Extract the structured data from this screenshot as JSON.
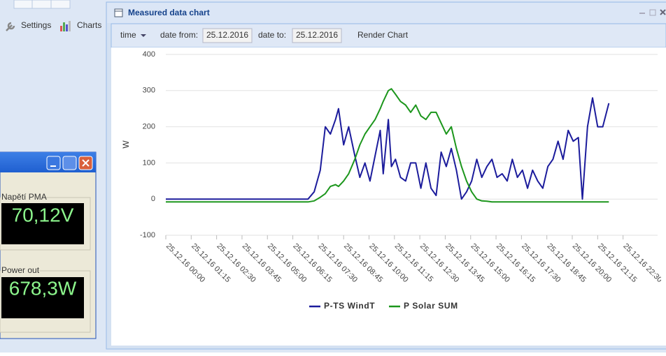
{
  "app": {
    "settings": "Settings",
    "charts": "Charts"
  },
  "side_panel": {
    "voltage_label": "Napětí PMA",
    "voltage_value": "70,12V",
    "power_label": "Power out",
    "power_value": "678,3W"
  },
  "window": {
    "title": "Measured data chart"
  },
  "toolbar": {
    "mode": "time",
    "date_from_label": "date from:",
    "date_from": "25.12.2016",
    "date_to_label": "date to:",
    "date_to": "25.12.2016",
    "render": "Render Chart"
  },
  "chart_data": {
    "type": "line",
    "y_label": "W",
    "ylim": [
      -100,
      400
    ],
    "yticks": [
      -100,
      0,
      100,
      200,
      300,
      400
    ],
    "xlim": [
      0,
      24.2
    ],
    "xticks": [
      {
        "value": 0,
        "label": "25.12.16 00:00"
      },
      {
        "value": 1.25,
        "label": "25.12.16 01:15"
      },
      {
        "value": 2.5,
        "label": "25.12.16 02:30"
      },
      {
        "value": 3.75,
        "label": "25.12.16 03:45"
      },
      {
        "value": 5,
        "label": "25.12.16 05:00"
      },
      {
        "value": 6.25,
        "label": "25.12.16 06:15"
      },
      {
        "value": 7.5,
        "label": "25.12.16 07:30"
      },
      {
        "value": 8.75,
        "label": "25.12.16 08:45"
      },
      {
        "value": 10,
        "label": "25.12.16 10:00"
      },
      {
        "value": 11.25,
        "label": "25.12.16 11:15"
      },
      {
        "value": 12.5,
        "label": "25.12.16 12:30"
      },
      {
        "value": 13.75,
        "label": "25.12.16 13:45"
      },
      {
        "value": 15,
        "label": "25.12.16 15:00"
      },
      {
        "value": 16.25,
        "label": "25.12.16 16:15"
      },
      {
        "value": 17.5,
        "label": "25.12.16 17:30"
      },
      {
        "value": 18.75,
        "label": "25.12.16 18:45"
      },
      {
        "value": 20,
        "label": "25.12.16 20:00"
      },
      {
        "value": 21.25,
        "label": "25.12.16 21:15"
      },
      {
        "value": 22.5,
        "label": "25.12.16 22:30"
      }
    ],
    "grid": true,
    "x": [
      0,
      7.0,
      7.3,
      7.6,
      7.85,
      8.1,
      8.35,
      8.5,
      8.75,
      9.0,
      9.3,
      9.55,
      9.8,
      10.05,
      10.3,
      10.55,
      10.7,
      10.95,
      11.1,
      11.3,
      11.55,
      11.8,
      12.05,
      12.3,
      12.55,
      12.8,
      13.05,
      13.3,
      13.55,
      13.8,
      14.05,
      14.3,
      14.55,
      14.8,
      15.05,
      15.3,
      15.55,
      15.8,
      16.05,
      16.3,
      16.55,
      16.8,
      17.05,
      17.3,
      17.55,
      17.8,
      18.05,
      18.3,
      18.55,
      18.8,
      19.05,
      19.3,
      19.55,
      19.8,
      20.05,
      20.3,
      20.5,
      20.75,
      21.0,
      21.25,
      21.5,
      21.8
    ],
    "series": [
      {
        "name": "P-TS WindT",
        "color": "#1c1c9c",
        "values": [
          0,
          0,
          20,
          80,
          200,
          180,
          220,
          250,
          150,
          200,
          120,
          60,
          100,
          50,
          120,
          190,
          70,
          220,
          90,
          110,
          60,
          50,
          100,
          100,
          30,
          100,
          30,
          10,
          130,
          90,
          140,
          80,
          0,
          20,
          50,
          110,
          60,
          90,
          110,
          60,
          70,
          50,
          110,
          60,
          80,
          30,
          80,
          50,
          30,
          90,
          110,
          160,
          110,
          190,
          160,
          170,
          0,
          200,
          280,
          200,
          200,
          265
        ]
      },
      {
        "name": "P Solar SUM",
        "color": "#1c961c",
        "values": [
          -8,
          -8,
          -5,
          5,
          15,
          35,
          40,
          35,
          50,
          70,
          110,
          150,
          180,
          200,
          220,
          250,
          270,
          300,
          305,
          290,
          270,
          260,
          240,
          260,
          230,
          220,
          240,
          240,
          210,
          180,
          200,
          140,
          90,
          50,
          20,
          0,
          -5,
          -6,
          -8,
          -8,
          -8,
          -8,
          -8,
          -8,
          -8,
          -8,
          -8,
          -8,
          -8,
          -8,
          -8,
          -8,
          -8,
          -8,
          -8,
          -8,
          -8,
          -8,
          -8,
          -8,
          -8,
          -8
        ]
      }
    ]
  }
}
